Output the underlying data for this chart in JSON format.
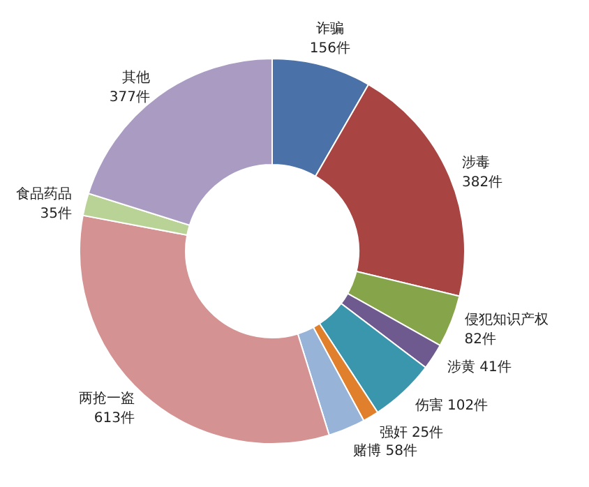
{
  "chart_data": {
    "type": "donut",
    "categories": [
      "诈骗",
      "涉毒",
      "侵犯知识产权",
      "涉黄",
      "伤害",
      "强奸",
      "赌博",
      "两抢一盗",
      "食品药品",
      "其他"
    ],
    "values": [
      156,
      382,
      82,
      41,
      102,
      25,
      58,
      613,
      35,
      377
    ],
    "value_labels": [
      "156件",
      "382件",
      "82件",
      "41件",
      "102件",
      "25件",
      "58件",
      "613件",
      "35件",
      "377件"
    ],
    "colors": [
      "#4a72a8",
      "#a84442",
      "#86a44a",
      "#6e5a8e",
      "#3a96ad",
      "#e07f2c",
      "#98b3d8",
      "#d49392",
      "#b9d396",
      "#a99bc1"
    ]
  }
}
